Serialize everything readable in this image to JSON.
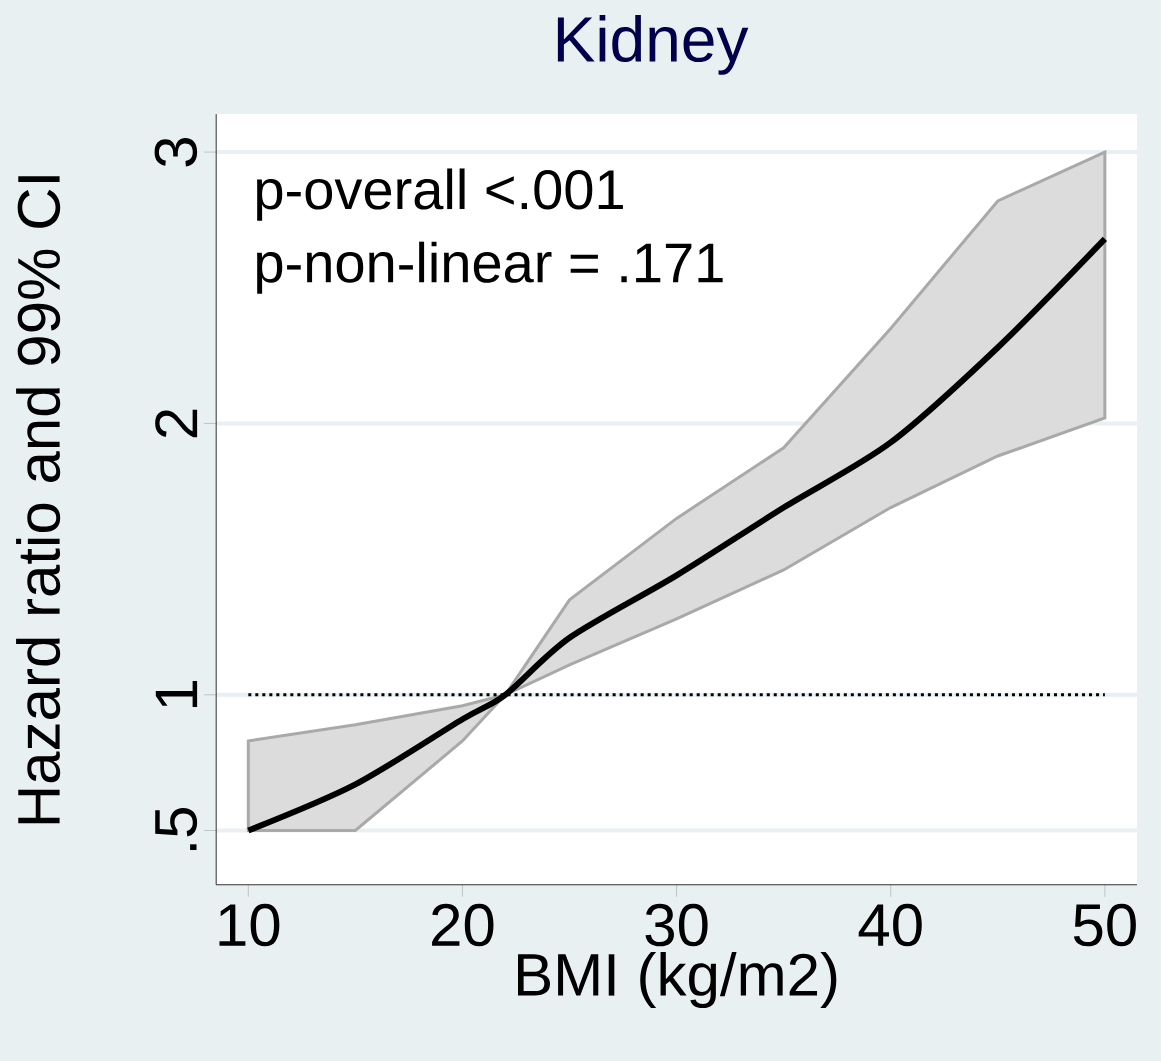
{
  "chart_data": {
    "type": "line",
    "title": "Kidney",
    "xlabel": "BMI (kg/m2)",
    "ylabel": "Hazard ratio and 99% CI",
    "annotations": [
      "p-overall <.001",
      "p-non-linear = .171"
    ],
    "x": [
      10,
      15,
      20,
      22,
      25,
      30,
      35,
      40,
      45,
      50
    ],
    "series": [
      {
        "color": "#000000",
        "values": [
          0.5,
          0.67,
          0.91,
          1.0,
          1.21,
          1.44,
          1.69,
          1.93,
          2.28,
          2.68
        ],
        "lower": [
          0.5,
          0.5,
          0.83,
          1.0,
          1.11,
          1.28,
          1.46,
          1.69,
          1.88,
          2.02
        ],
        "upper": [
          0.83,
          0.89,
          0.96,
          1.0,
          1.35,
          1.65,
          1.91,
          2.35,
          2.82,
          3.0
        ]
      }
    ],
    "xlim": [
      8.5,
      51.5
    ],
    "ylim": [
      0.3,
      3.14
    ],
    "xticks": [
      10,
      20,
      30,
      40,
      50
    ],
    "yticks": [
      {
        "value": 0.5,
        "label": ".5"
      },
      1,
      2,
      3
    ],
    "ref_lines": [
      {
        "axis": "y",
        "value": 1,
        "color": "#000000",
        "line_style": "dotted"
      }
    ],
    "grid": "y",
    "line_style": "solid",
    "marker": "none"
  }
}
